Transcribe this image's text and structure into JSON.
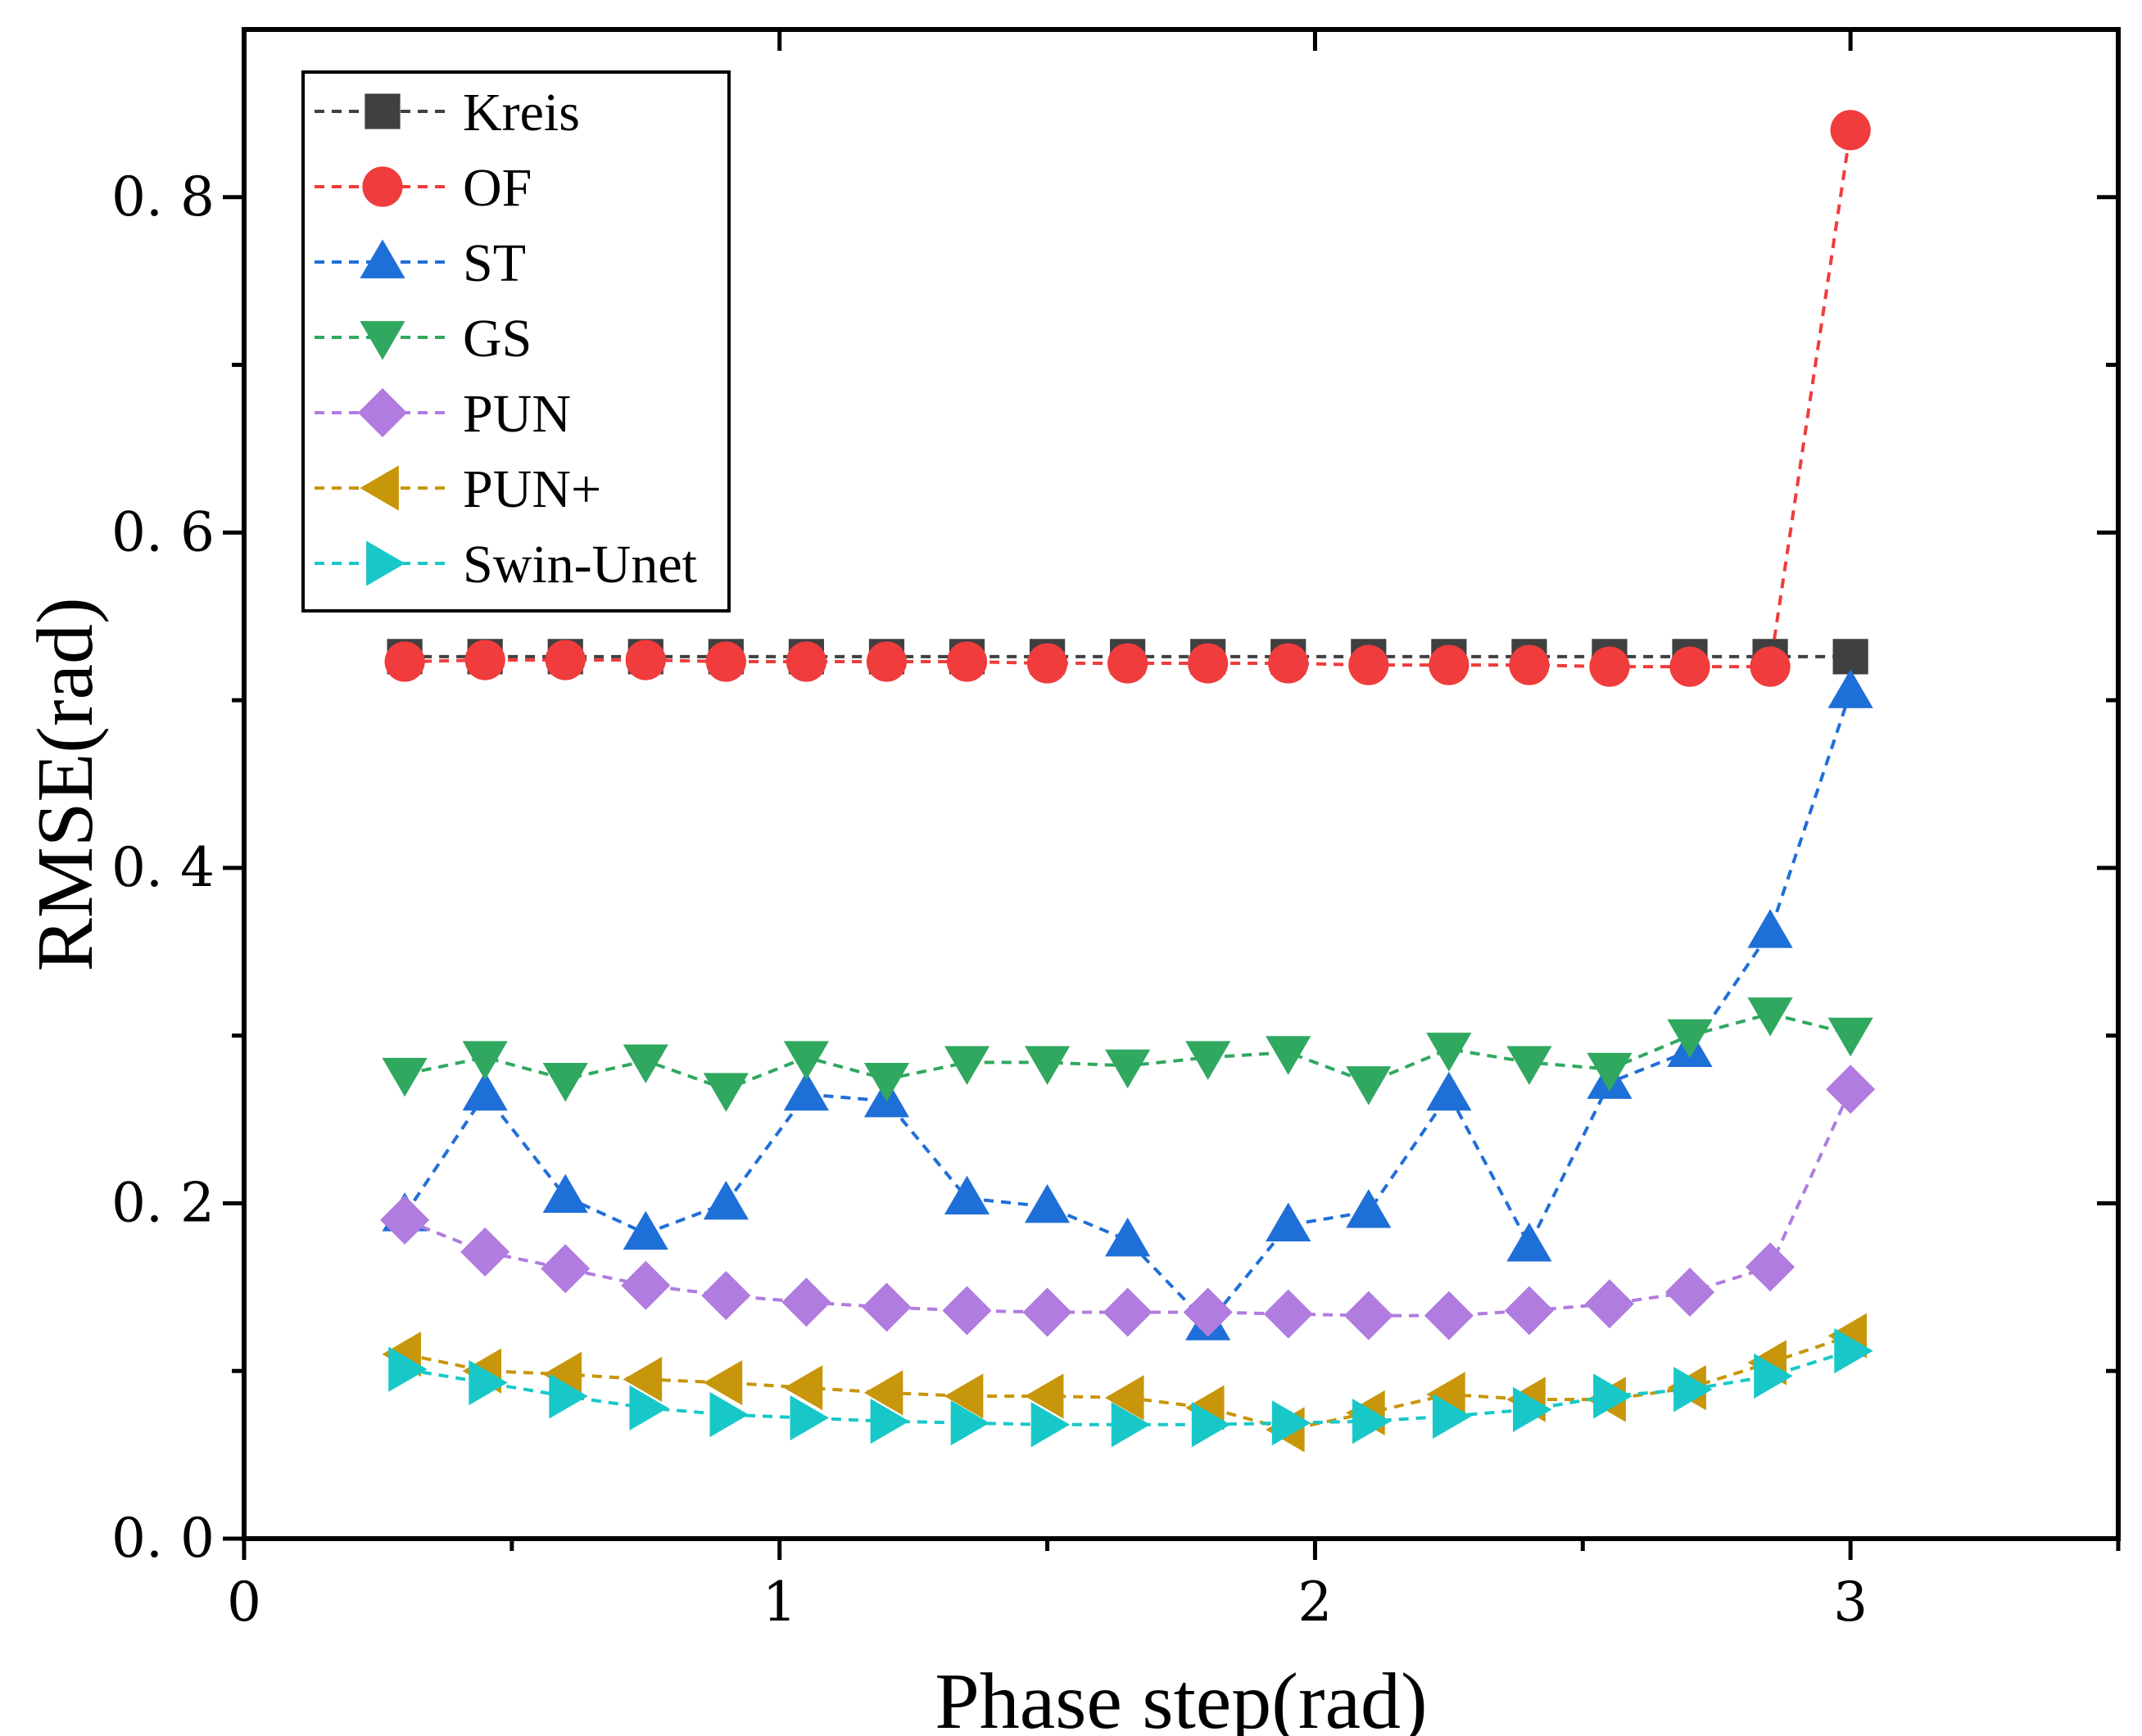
{
  "chart_data": {
    "type": "line",
    "title": "",
    "xlabel": "Phase step(rad)",
    "ylabel": "RMSE(rad)",
    "xlim": [
      0,
      3.5
    ],
    "ylim": [
      0,
      0.9
    ],
    "xticks": [
      0,
      1,
      2,
      3
    ],
    "xtick_labels": [
      "0",
      "1",
      "2",
      "3"
    ],
    "yticks": [
      0,
      0.2,
      0.4,
      0.6,
      0.8
    ],
    "ytick_labels": [
      "0. 0",
      "0. 2",
      "0. 4",
      "0. 6",
      "0. 8"
    ],
    "grid": false,
    "legend_position": "top-left",
    "x": [
      0.3,
      0.45,
      0.6,
      0.75,
      0.9,
      1.05,
      1.2,
      1.35,
      1.5,
      1.65,
      1.8,
      1.95,
      2.1,
      2.25,
      2.4,
      2.55,
      2.7,
      2.85,
      3.0
    ],
    "series": [
      {
        "name": "Kreis",
        "color": "#404040",
        "marker": "square",
        "values": [
          0.526,
          0.526,
          0.526,
          0.526,
          0.526,
          0.526,
          0.526,
          0.526,
          0.526,
          0.526,
          0.526,
          0.526,
          0.526,
          0.526,
          0.526,
          0.526,
          0.526,
          0.526,
          0.526
        ]
      },
      {
        "name": "OF",
        "color": "#f03c3c",
        "marker": "circle",
        "values": [
          0.523,
          0.524,
          0.524,
          0.524,
          0.523,
          0.523,
          0.523,
          0.523,
          0.522,
          0.522,
          0.522,
          0.522,
          0.521,
          0.521,
          0.521,
          0.52,
          0.52,
          0.52,
          0.84
        ]
      },
      {
        "name": "ST",
        "color": "#1f6fd8",
        "marker": "triangle-up",
        "values": [
          0.193,
          0.265,
          0.204,
          0.182,
          0.2,
          0.265,
          0.261,
          0.203,
          0.198,
          0.178,
          0.128,
          0.187,
          0.195,
          0.265,
          0.175,
          0.272,
          0.291,
          0.362,
          0.505
        ]
      },
      {
        "name": "GS",
        "color": "#30a860",
        "marker": "triangle-down",
        "values": [
          0.277,
          0.287,
          0.274,
          0.285,
          0.268,
          0.287,
          0.274,
          0.284,
          0.284,
          0.282,
          0.287,
          0.29,
          0.272,
          0.292,
          0.284,
          0.28,
          0.3,
          0.313,
          0.301
        ]
      },
      {
        "name": "PUN",
        "color": "#b07ce0",
        "marker": "diamond",
        "values": [
          0.19,
          0.171,
          0.161,
          0.151,
          0.145,
          0.141,
          0.138,
          0.136,
          0.135,
          0.135,
          0.135,
          0.134,
          0.133,
          0.133,
          0.136,
          0.14,
          0.147,
          0.162,
          0.268
        ]
      },
      {
        "name": "PUN+",
        "color": "#c8960a",
        "marker": "triangle-left",
        "values": [
          0.11,
          0.1,
          0.098,
          0.095,
          0.093,
          0.09,
          0.087,
          0.085,
          0.085,
          0.084,
          0.078,
          0.065,
          0.075,
          0.086,
          0.083,
          0.083,
          0.09,
          0.105,
          0.121
        ]
      },
      {
        "name": "Swin-Unet",
        "color": "#18c8c8",
        "marker": "triangle-right",
        "values": [
          0.101,
          0.093,
          0.085,
          0.078,
          0.074,
          0.072,
          0.07,
          0.069,
          0.068,
          0.068,
          0.068,
          0.069,
          0.07,
          0.073,
          0.077,
          0.085,
          0.089,
          0.097,
          0.112
        ]
      }
    ]
  }
}
